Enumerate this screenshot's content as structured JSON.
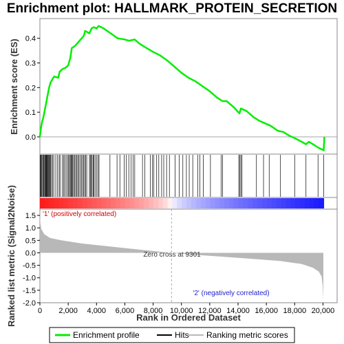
{
  "chart_data": {
    "type": "line",
    "title": "Enrichment plot: HALLMARK_PROTEIN_SECRETION",
    "xlabel": "Rank in Ordered Dataset",
    "ylabel_top": "Enrichment score (ES)",
    "ylabel_bottom": "Ranked list metric (Signal2Noise)",
    "xlim": [
      0,
      21000
    ],
    "x_ticks": [
      0,
      2000,
      4000,
      6000,
      8000,
      10000,
      12000,
      14000,
      16000,
      18000,
      20000
    ],
    "x_tick_labels": [
      "0",
      "2,000",
      "4,000",
      "6,000",
      "8,000",
      "10,000",
      "12,000",
      "14,000",
      "16,000",
      "18,000",
      "20,000"
    ],
    "es_ylim": [
      -0.07,
      0.48
    ],
    "es_ticks": [
      0.0,
      0.1,
      0.2,
      0.3,
      0.4
    ],
    "es_tick_labels": [
      "0.0",
      "0.1",
      "0.2",
      "0.3",
      "0.4"
    ],
    "metric_ylim": [
      -2.0,
      1.75
    ],
    "metric_ticks": [
      1.5,
      1.0,
      0.5,
      0.0,
      -0.5,
      -1.0,
      -1.5,
      -2.0
    ],
    "metric_tick_labels": [
      "1.5",
      "1.0",
      "0.5",
      "0.0",
      "-0.5",
      "-1.0",
      "-1.5",
      "-2.0"
    ],
    "enrichment_profile": [
      [
        0,
        0.0
      ],
      [
        60,
        0.03
      ],
      [
        150,
        0.06
      ],
      [
        250,
        0.08
      ],
      [
        350,
        0.11
      ],
      [
        450,
        0.14
      ],
      [
        550,
        0.17
      ],
      [
        650,
        0.2
      ],
      [
        750,
        0.22
      ],
      [
        900,
        0.235
      ],
      [
        1000,
        0.245
      ],
      [
        1300,
        0.24
      ],
      [
        1400,
        0.265
      ],
      [
        1600,
        0.275
      ],
      [
        1800,
        0.28
      ],
      [
        2000,
        0.29
      ],
      [
        2150,
        0.32
      ],
      [
        2250,
        0.36
      ],
      [
        2500,
        0.37
      ],
      [
        2800,
        0.39
      ],
      [
        3100,
        0.41
      ],
      [
        3200,
        0.43
      ],
      [
        3500,
        0.42
      ],
      [
        3650,
        0.44
      ],
      [
        3800,
        0.445
      ],
      [
        4000,
        0.44
      ],
      [
        4150,
        0.45
      ],
      [
        4500,
        0.44
      ],
      [
        5000,
        0.42
      ],
      [
        5500,
        0.4
      ],
      [
        6000,
        0.395
      ],
      [
        6300,
        0.39
      ],
      [
        6700,
        0.395
      ],
      [
        7000,
        0.38
      ],
      [
        7400,
        0.365
      ],
      [
        8000,
        0.345
      ],
      [
        8500,
        0.33
      ],
      [
        9000,
        0.31
      ],
      [
        9500,
        0.285
      ],
      [
        10000,
        0.26
      ],
      [
        10500,
        0.24
      ],
      [
        11000,
        0.225
      ],
      [
        11500,
        0.205
      ],
      [
        12000,
        0.185
      ],
      [
        12500,
        0.16
      ],
      [
        12900,
        0.145
      ],
      [
        13200,
        0.145
      ],
      [
        13700,
        0.12
      ],
      [
        14100,
        0.095
      ],
      [
        14200,
        0.115
      ],
      [
        14600,
        0.105
      ],
      [
        15100,
        0.08
      ],
      [
        15500,
        0.065
      ],
      [
        15900,
        0.055
      ],
      [
        16300,
        0.045
      ],
      [
        16800,
        0.025
      ],
      [
        17200,
        0.02
      ],
      [
        17600,
        0.005
      ],
      [
        18000,
        -0.005
      ],
      [
        18500,
        -0.02
      ],
      [
        18800,
        -0.03
      ],
      [
        19000,
        -0.02
      ],
      [
        19300,
        -0.03
      ],
      [
        19700,
        -0.045
      ],
      [
        19900,
        -0.05
      ],
      [
        20050,
        -0.055
      ],
      [
        20100,
        0.0
      ]
    ],
    "hit_ranks": [
      20,
      60,
      100,
      150,
      210,
      260,
      300,
      360,
      400,
      440,
      480,
      520,
      560,
      610,
      650,
      700,
      760,
      820,
      900,
      980,
      1120,
      1250,
      1360,
      1420,
      1580,
      1680,
      1750,
      1850,
      1950,
      2030,
      2090,
      2150,
      2210,
      2260,
      2320,
      2380,
      2450,
      2530,
      2610,
      2680,
      2760,
      2840,
      2930,
      3010,
      3090,
      3160,
      3240,
      3310,
      3500,
      3560,
      3620,
      3690,
      3760,
      3820,
      3900,
      4000,
      4100,
      4180,
      4950,
      5450,
      5650,
      5950,
      6100,
      6280,
      6450,
      6580,
      6700,
      7250,
      7420,
      7800,
      7950,
      8050,
      8250,
      8400,
      8600,
      8750,
      8950,
      9150,
      9550,
      9850,
      10100,
      10350,
      10550,
      10800,
      11150,
      11300,
      11550,
      12050,
      12800,
      12900,
      14050,
      14120,
      14200,
      14280,
      15300,
      15800,
      16200,
      17000,
      18000,
      18800,
      19650,
      20050
    ],
    "metric_shape": [
      [
        0,
        1.7
      ],
      [
        30,
        1.2
      ],
      [
        100,
        0.95
      ],
      [
        300,
        0.75
      ],
      [
        700,
        0.6
      ],
      [
        1500,
        0.5
      ],
      [
        3000,
        0.37
      ],
      [
        5000,
        0.25
      ],
      [
        7000,
        0.13
      ],
      [
        9301,
        0.0
      ],
      [
        11000,
        -0.08
      ],
      [
        13000,
        -0.16
      ],
      [
        15000,
        -0.24
      ],
      [
        17000,
        -0.33
      ],
      [
        18500,
        -0.45
      ],
      [
        19300,
        -0.6
      ],
      [
        19700,
        -0.75
      ],
      [
        19900,
        -0.95
      ],
      [
        19980,
        -1.3
      ],
      [
        20030,
        -1.85
      ]
    ],
    "zero_cross_label": "Zero cross at 9301",
    "zero_cross_rank": 9301,
    "pos_label": "'1' (positively correlated)",
    "neg_label": "'2' (negatively correlated)",
    "legend": [
      "Enrichment profile",
      "Hits",
      "Ranking metric scores"
    ],
    "colors": {
      "profile": "#00ee00",
      "hits": "#000000",
      "metric_fill": "#b8b8b8",
      "pos_label": "#cc0000",
      "neg_label": "#2222cc"
    }
  }
}
